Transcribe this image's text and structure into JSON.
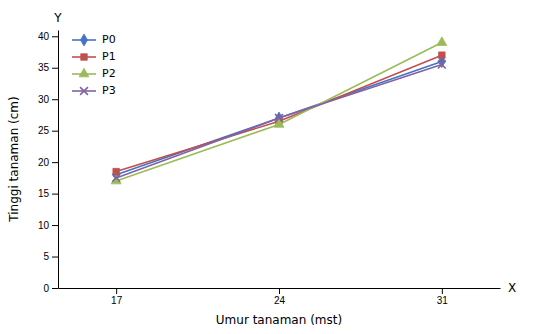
{
  "chart_data": {
    "type": "line",
    "x": [
      17,
      24,
      31
    ],
    "series": [
      {
        "name": "P0",
        "values": [
          18.0,
          27.0,
          36.0
        ],
        "color": "#4472C4",
        "marker": "diamond"
      },
      {
        "name": "P1",
        "values": [
          18.5,
          26.5,
          37.0
        ],
        "color": "#C0504D",
        "marker": "square"
      },
      {
        "name": "P2",
        "values": [
          17.0,
          26.0,
          39.0
        ],
        "color": "#9BBB59",
        "marker": "triangle"
      },
      {
        "name": "P3",
        "values": [
          17.5,
          27.0,
          35.5
        ],
        "color": "#8064A2",
        "marker": "x"
      }
    ],
    "xlabel": "Umur tanaman (mst)",
    "ylabel": "Tinggi tanaman (cm)",
    "annotations": [
      "X",
      "Y"
    ],
    "xlim": [
      14.5,
      33.5
    ],
    "ylim": [
      0,
      41
    ],
    "xticks": [
      17,
      24,
      31
    ],
    "yticks": [
      0,
      5,
      10,
      15,
      20,
      25,
      30,
      35,
      40
    ],
    "grid": false,
    "legend": "upper left"
  }
}
